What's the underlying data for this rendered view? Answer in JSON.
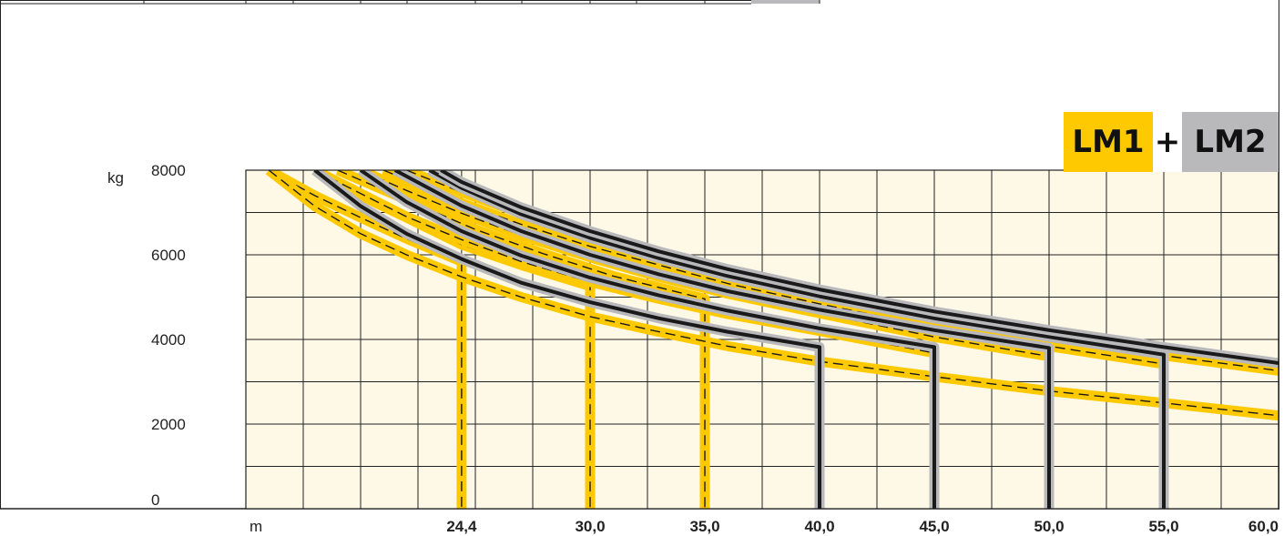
{
  "header": {
    "badge_lm1": "LM1",
    "badge_plus": "+",
    "badge_lm2": "LM2",
    "colors": {
      "lm1": "#ffc900",
      "lm2": "#b9b9bc"
    }
  },
  "chart_data": {
    "type": "line",
    "ylabel": "kg",
    "xlabel": "m",
    "ylim": [
      0,
      8000
    ],
    "y_ticks": [
      "8000",
      "6000",
      "4000",
      "2000",
      "0"
    ],
    "x_ticks": [
      "24,4",
      "30,0",
      "35,0",
      "40,0",
      "45,0",
      "50,0",
      "55,0",
      "60,0"
    ],
    "grid": true,
    "colors": {
      "lm1": "#ffc900",
      "lm2": "#b9b9bc",
      "line": "#1a1a1a",
      "plot_bg": "#fdf9e6",
      "grid": "#222222"
    },
    "series": [
      {
        "boom": "24,4",
        "config": "LM1",
        "points": [
          [
            16.0,
            8000
          ],
          [
            18.0,
            7400
          ],
          [
            20.0,
            6880
          ],
          [
            22.0,
            6380
          ],
          [
            24.4,
            5840
          ]
        ]
      },
      {
        "boom": "30,0",
        "config": "LM1",
        "points": [
          [
            18.0,
            8000
          ],
          [
            20.0,
            7400
          ],
          [
            22.0,
            6880
          ],
          [
            24.4,
            6240
          ],
          [
            27.0,
            5760
          ],
          [
            30.0,
            5260
          ]
        ]
      },
      {
        "boom": "35,0",
        "config": "LM1",
        "points": [
          [
            19.0,
            8000
          ],
          [
            22.0,
            7300
          ],
          [
            25.0,
            6600
          ],
          [
            28.0,
            6020
          ],
          [
            31.0,
            5500
          ],
          [
            35.0,
            4960
          ]
        ]
      },
      {
        "boom": "40,0",
        "config": "LM1",
        "points": [
          [
            16.0,
            8000
          ],
          [
            18.0,
            7150
          ],
          [
            20.0,
            6500
          ],
          [
            22.0,
            6000
          ],
          [
            24.4,
            5480
          ],
          [
            27.0,
            5000
          ],
          [
            30.0,
            4540
          ],
          [
            33.0,
            4180
          ],
          [
            36.0,
            3840
          ],
          [
            40.0,
            3480
          ],
          [
            45.0,
            3120
          ],
          [
            50.0,
            2780
          ],
          [
            55.0,
            2500
          ],
          [
            60.0,
            2200
          ]
        ]
      },
      {
        "boom": "45,0",
        "config": "LM1",
        "points": [
          [
            18.0,
            8000
          ],
          [
            20.0,
            7450
          ],
          [
            22.0,
            6900
          ],
          [
            24.4,
            6360
          ],
          [
            27.0,
            5840
          ],
          [
            30.0,
            5360
          ],
          [
            33.0,
            4960
          ],
          [
            36.0,
            4600
          ],
          [
            40.0,
            4200
          ],
          [
            45.0,
            3680
          ]
        ]
      },
      {
        "boom": "50,0",
        "config": "LM1",
        "points": [
          [
            20.0,
            8000
          ],
          [
            22.0,
            7520
          ],
          [
            24.4,
            6980
          ],
          [
            27.0,
            6460
          ],
          [
            30.0,
            5940
          ],
          [
            33.0,
            5480
          ],
          [
            36.0,
            5080
          ],
          [
            40.0,
            4620
          ],
          [
            45.0,
            4060
          ],
          [
            50.0,
            3600
          ]
        ]
      },
      {
        "boom": "55,0",
        "config": "LM1",
        "points": [
          [
            21.0,
            8000
          ],
          [
            24.4,
            7220
          ],
          [
            27.0,
            6720
          ],
          [
            30.0,
            6200
          ],
          [
            33.0,
            5760
          ],
          [
            36.0,
            5320
          ],
          [
            40.0,
            4840
          ],
          [
            45.0,
            4280
          ],
          [
            50.0,
            3840
          ],
          [
            55.0,
            3420
          ]
        ]
      },
      {
        "boom": "60,0",
        "config": "LM1",
        "points": [
          [
            22.0,
            8000
          ],
          [
            24.4,
            7480
          ],
          [
            27.0,
            6980
          ],
          [
            30.0,
            6460
          ],
          [
            33.0,
            5980
          ],
          [
            36.0,
            5540
          ],
          [
            40.0,
            5040
          ],
          [
            45.0,
            4480
          ],
          [
            50.0,
            4000
          ],
          [
            55.0,
            3620
          ],
          [
            60.0,
            3260
          ]
        ]
      },
      {
        "boom": "40,0",
        "config": "LM1+LM2",
        "points": [
          [
            18.0,
            8000
          ],
          [
            20.0,
            7150
          ],
          [
            22.0,
            6500
          ],
          [
            24.4,
            5900
          ],
          [
            27.0,
            5340
          ],
          [
            30.0,
            4880
          ],
          [
            33.0,
            4500
          ],
          [
            36.0,
            4180
          ],
          [
            40.0,
            3820
          ]
        ]
      },
      {
        "boom": "45,0",
        "config": "LM1+LM2",
        "points": [
          [
            20.0,
            8000
          ],
          [
            22.0,
            7250
          ],
          [
            24.4,
            6560
          ],
          [
            27.0,
            5980
          ],
          [
            30.0,
            5460
          ],
          [
            33.0,
            5040
          ],
          [
            36.0,
            4680
          ],
          [
            40.0,
            4260
          ],
          [
            45.0,
            3820
          ]
        ]
      },
      {
        "boom": "50,0",
        "config": "LM1+LM2",
        "points": [
          [
            21.5,
            8000
          ],
          [
            24.4,
            7160
          ],
          [
            27.0,
            6560
          ],
          [
            30.0,
            6000
          ],
          [
            33.0,
            5540
          ],
          [
            36.0,
            5140
          ],
          [
            40.0,
            4700
          ],
          [
            45.0,
            4220
          ],
          [
            50.0,
            3800
          ]
        ]
      },
      {
        "boom": "55,0",
        "config": "LM1+LM2",
        "points": [
          [
            23.0,
            8000
          ],
          [
            24.4,
            7580
          ],
          [
            27.0,
            6960
          ],
          [
            30.0,
            6400
          ],
          [
            33.0,
            5920
          ],
          [
            36.0,
            5500
          ],
          [
            40.0,
            5020
          ],
          [
            45.0,
            4500
          ],
          [
            50.0,
            4060
          ],
          [
            55.0,
            3640
          ]
        ]
      },
      {
        "boom": "60,0",
        "config": "LM1+LM2",
        "points": [
          [
            23.5,
            8000
          ],
          [
            24.4,
            7720
          ],
          [
            27.0,
            7120
          ],
          [
            30.0,
            6560
          ],
          [
            33.0,
            6080
          ],
          [
            36.0,
            5660
          ],
          [
            40.0,
            5180
          ],
          [
            45.0,
            4660
          ],
          [
            50.0,
            4220
          ],
          [
            55.0,
            3820
          ],
          [
            60.0,
            3440
          ]
        ]
      }
    ]
  }
}
